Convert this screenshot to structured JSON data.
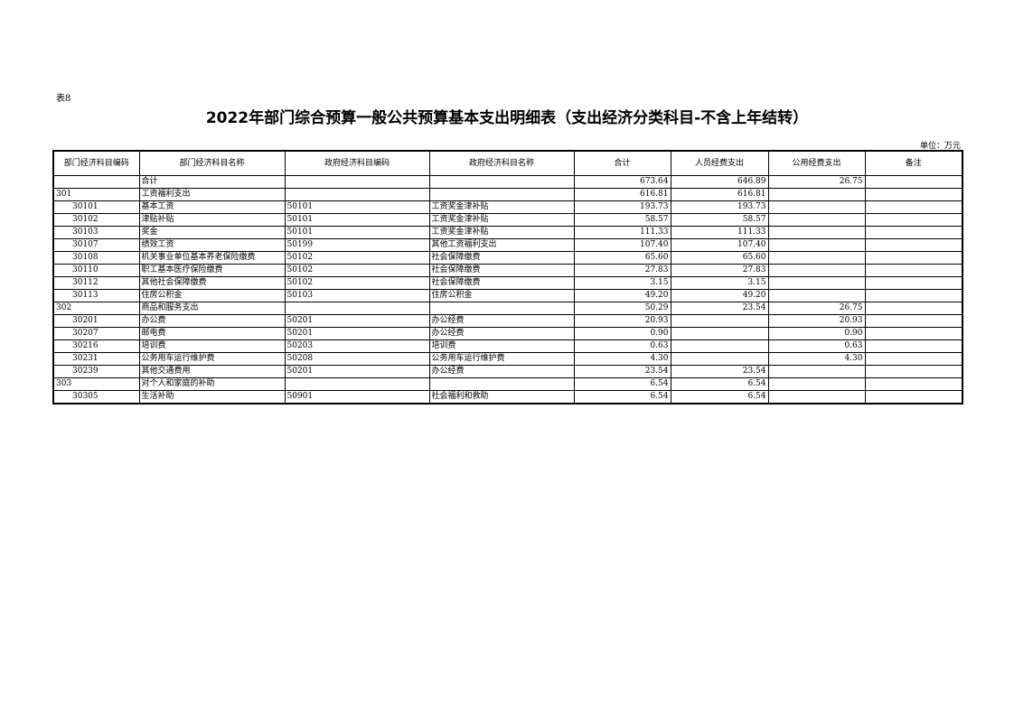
{
  "doc": {
    "table_label": "表8",
    "title": "2022年部门综合预算一般公共预算基本支出明细表（支出经济分类科目-不含上年结转）",
    "unit": "单位：万元"
  },
  "table": {
    "headers": [
      "部门经济科目编码",
      "部门经济科目名称",
      "政府经济科目编码",
      "政府经济科目名称",
      "合计",
      "人员经费支出",
      "公用经费支出",
      "备注"
    ],
    "rows": [
      [
        "",
        "合计",
        "",
        "",
        "673.64",
        "646.89",
        "26.75",
        ""
      ],
      [
        "301",
        "工资福利支出",
        "",
        "",
        "616.81",
        "616.81",
        "",
        ""
      ],
      [
        "30101",
        "基本工资",
        "50101",
        "工资奖金津补贴",
        "193.73",
        "193.73",
        "",
        ""
      ],
      [
        "30102",
        "津贴补贴",
        "50101",
        "工资奖金津补贴",
        "58.57",
        "58.57",
        "",
        ""
      ],
      [
        "30103",
        "奖金",
        "50101",
        "工资奖金津补贴",
        "111.33",
        "111.33",
        "",
        ""
      ],
      [
        "30107",
        "绩效工资",
        "50199",
        "其他工资福利支出",
        "107.40",
        "107.40",
        "",
        ""
      ],
      [
        "30108",
        "机关事业单位基本养老保险缴费",
        "50102",
        "社会保障缴费",
        "65.60",
        "65.60",
        "",
        ""
      ],
      [
        "30110",
        "职工基本医疗保险缴费",
        "50102",
        "社会保障缴费",
        "27.83",
        "27.83",
        "",
        ""
      ],
      [
        "30112",
        "其他社会保障缴费",
        "50102",
        "社会保障缴费",
        "3.15",
        "3.15",
        "",
        ""
      ],
      [
        "30113",
        "住房公积金",
        "50103",
        "住房公积金",
        "49.20",
        "49.20",
        "",
        ""
      ],
      [
        "302",
        "商品和服务支出",
        "",
        "",
        "50.29",
        "23.54",
        "26.75",
        ""
      ],
      [
        "30201",
        "办公费",
        "50201",
        "办公经费",
        "20.93",
        "",
        "20.93",
        ""
      ],
      [
        "30207",
        "邮电费",
        "50201",
        "办公经费",
        "0.90",
        "",
        "0.90",
        ""
      ],
      [
        "30216",
        "培训费",
        "50203",
        "培训费",
        "0.63",
        "",
        "0.63",
        ""
      ],
      [
        "30231",
        "公务用车运行维护费",
        "50208",
        "公务用车运行维护费",
        "4.30",
        "",
        "4.30",
        ""
      ],
      [
        "30239",
        "其他交通费用",
        "50201",
        "办公经费",
        "23.54",
        "23.54",
        "",
        ""
      ],
      [
        "303",
        "对个人和家庭的补助",
        "",
        "",
        "6.54",
        "6.54",
        "",
        ""
      ],
      [
        "30305",
        "生活补助",
        "50901",
        "社会福利和救助",
        "6.54",
        "6.54",
        "",
        ""
      ]
    ]
  }
}
